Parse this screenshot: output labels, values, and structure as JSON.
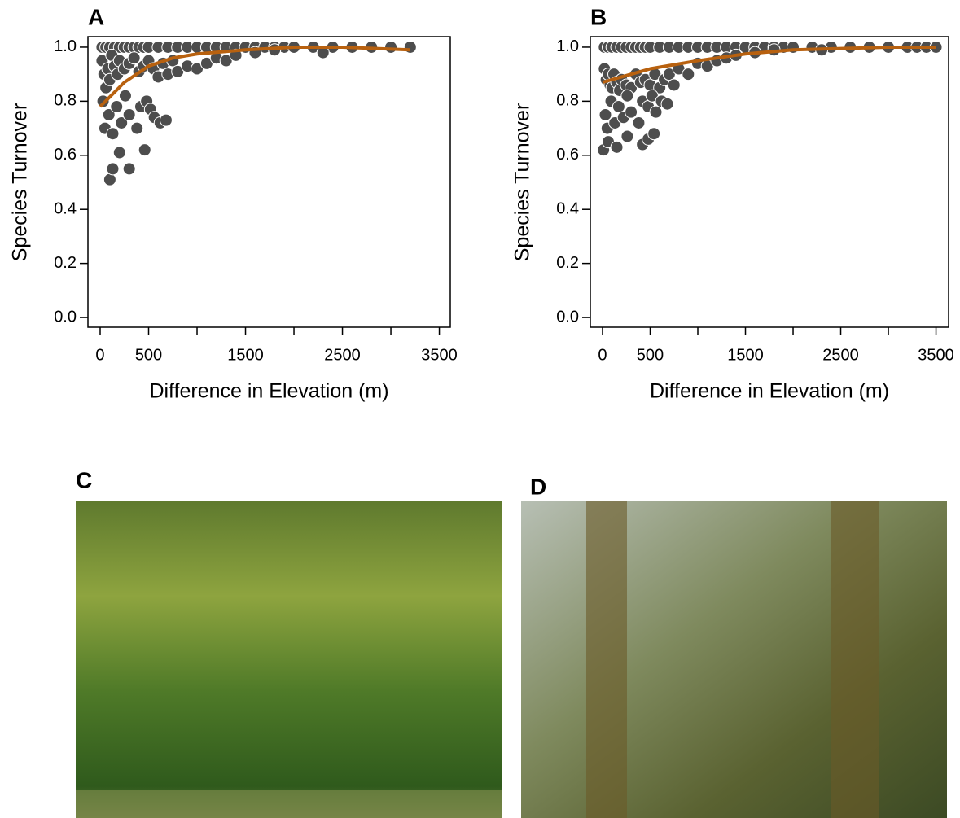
{
  "chart_data": [
    {
      "type": "scatter",
      "title": "A",
      "x_label": "Difference in Elevation (m)",
      "y_label": "Species Turnover",
      "xlim": [
        -126,
        3613
      ],
      "ylim": [
        -0.036,
        1.039
      ],
      "xticks": [
        0,
        500,
        {
          "value": 1000,
          "label": null
        },
        1500,
        {
          "value": 2000,
          "label": null
        },
        2500,
        {
          "value": 3000,
          "label": null
        },
        3500
      ],
      "yticks": [
        {
          "value": 0,
          "label": "0.0"
        },
        0.2,
        0.4,
        0.6,
        0.8,
        {
          "value": 1,
          "label": "1.0"
        }
      ],
      "series": [
        {
          "type": "scatter",
          "color": "#4d4d4d",
          "x": [
            20,
            60,
            100,
            150,
            200,
            250,
            300,
            350,
            400,
            450,
            500,
            600,
            700,
            800,
            900,
            1000,
            1100,
            1200,
            1300,
            1400,
            1500,
            1600,
            1700,
            1800,
            1900,
            2000,
            2200,
            2400,
            2600,
            2800,
            3000,
            3200,
            20,
            40,
            60,
            80,
            100,
            120,
            150,
            180,
            200,
            250,
            300,
            350,
            400,
            450,
            500,
            550,
            600,
            650,
            700,
            750,
            800,
            900,
            1000,
            1100,
            1200,
            1300,
            1400,
            1600,
            1800,
            2300,
            30,
            50,
            90,
            130,
            170,
            220,
            260,
            300,
            380,
            420,
            480,
            520,
            560,
            620,
            680,
            100,
            130,
            200,
            300,
            460
          ],
          "values": [
            1,
            1,
            1,
            1,
            1,
            1,
            1,
            1,
            1,
            1,
            1,
            1,
            1,
            1,
            1,
            1,
            1,
            1,
            1,
            1,
            1,
            1,
            1,
            1,
            1,
            1,
            1,
            1,
            1,
            1,
            1,
            1,
            0.95,
            0.9,
            0.85,
            0.92,
            0.88,
            0.97,
            0.93,
            0.9,
            0.95,
            0.92,
            0.94,
            0.96,
            0.91,
            0.93,
            0.95,
            0.92,
            0.89,
            0.94,
            0.9,
            0.95,
            0.91,
            0.93,
            0.92,
            0.94,
            0.96,
            0.95,
            0.97,
            0.98,
            0.99,
            0.98,
            0.8,
            0.7,
            0.75,
            0.68,
            0.78,
            0.72,
            0.82,
            0.75,
            0.7,
            0.78,
            0.8,
            0.77,
            0.74,
            0.72,
            0.73,
            0.51,
            0.55,
            0.61,
            0.55,
            0.62
          ]
        },
        {
          "type": "line",
          "color": "#b8610f",
          "x": [
            0,
            250,
            500,
            750,
            1000,
            1500,
            2000,
            2500,
            3200
          ],
          "values": [
            0.78,
            0.87,
            0.93,
            0.96,
            0.975,
            0.99,
            1,
            1,
            0.99
          ]
        }
      ]
    },
    {
      "type": "scatter",
      "title": "B",
      "x_label": "Difference in Elevation (m)",
      "y_label": "Species Turnover",
      "xlim": [
        -128,
        3632
      ],
      "ylim": [
        -0.036,
        1.039
      ],
      "xticks": [
        0,
        500,
        {
          "value": 1000,
          "label": null
        },
        1500,
        {
          "value": 2000,
          "label": null
        },
        2500,
        {
          "value": 3000,
          "label": null
        },
        3500
      ],
      "yticks": [
        {
          "value": 0,
          "label": "0.0"
        },
        0.2,
        0.4,
        0.6,
        0.8,
        {
          "value": 1,
          "label": "1.0"
        }
      ],
      "series": [
        {
          "type": "scatter",
          "color": "#4d4d4d",
          "x": [
            20,
            60,
            100,
            150,
            200,
            250,
            300,
            350,
            400,
            450,
            500,
            600,
            700,
            800,
            900,
            1000,
            1100,
            1200,
            1300,
            1400,
            1500,
            1600,
            1700,
            1800,
            1900,
            2000,
            2200,
            2400,
            2600,
            2800,
            3000,
            3200,
            3300,
            3400,
            3500,
            20,
            40,
            60,
            80,
            100,
            120,
            150,
            180,
            200,
            250,
            300,
            350,
            400,
            450,
            500,
            550,
            600,
            650,
            700,
            750,
            800,
            900,
            1000,
            1100,
            1200,
            1300,
            1400,
            1600,
            1800,
            2300,
            30,
            50,
            90,
            130,
            170,
            220,
            260,
            300,
            380,
            420,
            480,
            520,
            560,
            620,
            680,
            10,
            60,
            150,
            260,
            420,
            480,
            540
          ],
          "values": [
            1,
            1,
            1,
            1,
            1,
            1,
            1,
            1,
            1,
            1,
            1,
            1,
            1,
            1,
            1,
            1,
            1,
            1,
            1,
            1,
            1,
            1,
            1,
            1,
            1,
            1,
            1,
            1,
            1,
            1,
            1,
            1,
            1,
            1,
            1,
            0.92,
            0.88,
            0.9,
            0.86,
            0.85,
            0.9,
            0.87,
            0.84,
            0.88,
            0.86,
            0.85,
            0.9,
            0.87,
            0.88,
            0.86,
            0.9,
            0.85,
            0.88,
            0.9,
            0.86,
            0.92,
            0.9,
            0.94,
            0.93,
            0.95,
            0.96,
            0.97,
            0.98,
            0.99,
            0.99,
            0.75,
            0.7,
            0.8,
            0.72,
            0.78,
            0.74,
            0.82,
            0.76,
            0.72,
            0.8,
            0.78,
            0.82,
            0.76,
            0.8,
            0.79,
            0.62,
            0.65,
            0.63,
            0.67,
            0.64,
            0.66,
            0.68
          ]
        },
        {
          "type": "line",
          "color": "#b8610f",
          "x": [
            0,
            500,
            1000,
            1500,
            2000,
            2500,
            3000,
            3500
          ],
          "values": [
            0.87,
            0.92,
            0.95,
            0.975,
            0.99,
            0.995,
            1,
            1
          ]
        }
      ]
    }
  ],
  "photos": [
    {
      "label": "C"
    },
    {
      "label": "D"
    }
  ]
}
